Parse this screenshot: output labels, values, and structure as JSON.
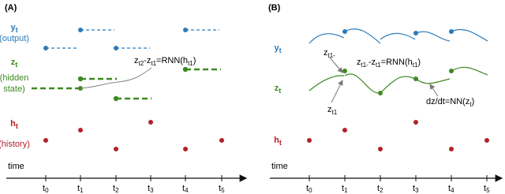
{
  "panels": [
    {
      "label": "(A)",
      "rows": [
        {
          "symbol": "y",
          "sub": "t",
          "desc": [
            "(output)"
          ]
        },
        {
          "symbol": "z",
          "sub": "t",
          "desc": [
            "(hidden",
            "state)"
          ]
        },
        {
          "symbol": "h",
          "sub": "t",
          "desc": [
            "(history)"
          ]
        }
      ],
      "annotations": [
        [
          {
            "t": "z",
            "s": "t2"
          },
          {
            "t": "-z",
            "s": "t1"
          },
          {
            "t": "=RNN(h",
            "s": "t1"
          },
          {
            "t": ")"
          }
        ]
      ],
      "axis": {
        "label": "time",
        "ticks": [
          {
            "t": "t",
            "s": "0"
          },
          {
            "t": "t",
            "s": "1"
          },
          {
            "t": "t",
            "s": "2"
          },
          {
            "t": "t",
            "s": "3"
          },
          {
            "t": "t",
            "s": "4"
          },
          {
            "t": "t",
            "s": "5"
          }
        ]
      }
    },
    {
      "label": "(B)",
      "rows": [
        {
          "symbol": "y",
          "sub": "t"
        },
        {
          "symbol": "z",
          "sub": "t"
        },
        {
          "symbol": "h",
          "sub": "t"
        }
      ],
      "annotations": [
        [
          {
            "t": "z",
            "s": "t1-"
          }
        ],
        [
          {
            "t": "z",
            "s": "t1-"
          },
          {
            "t": "-z",
            "s": "t1"
          },
          {
            "t": "=RNN(h",
            "s": "t1"
          },
          {
            "t": ")"
          }
        ],
        [
          {
            "t": "z",
            "s": "t1"
          }
        ],
        [
          {
            "t": "dz/dt=NN(z",
            "s": "t"
          },
          {
            "t": ")"
          }
        ]
      ],
      "axis": {
        "label": "time",
        "ticks": [
          {
            "t": "t",
            "s": "0"
          },
          {
            "t": "t",
            "s": "1"
          },
          {
            "t": "t",
            "s": "2"
          },
          {
            "t": "t",
            "s": "3"
          },
          {
            "t": "t",
            "s": "4"
          },
          {
            "t": "t",
            "s": "5"
          }
        ]
      }
    }
  ]
}
